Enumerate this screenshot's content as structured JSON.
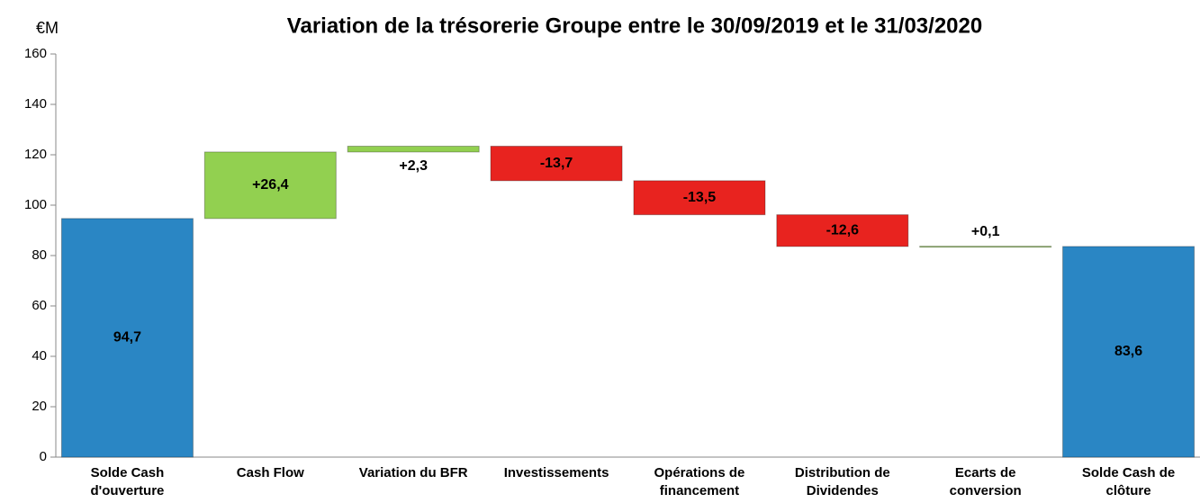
{
  "chart_data": {
    "type": "waterfall",
    "title": "Variation de  la trésorerie Groupe entre le 30/09/2019 et le 31/03/2020",
    "y_label": "€M",
    "categories": [
      [
        "Solde Cash",
        "d'ouverture"
      ],
      [
        "Cash Flow"
      ],
      [
        "Variation du BFR"
      ],
      [
        "Investissements"
      ],
      [
        "Opérations de",
        "financement"
      ],
      [
        "Distribution de",
        "Dividendes"
      ],
      [
        "Ecarts de",
        "conversion"
      ],
      [
        "Solde Cash de",
        "clôture"
      ]
    ],
    "values": [
      94.7,
      26.4,
      2.3,
      -13.7,
      -13.5,
      -12.6,
      0.1,
      83.6
    ],
    "value_labels": [
      "94,7",
      "+26,4",
      "+2,3",
      "-13,7",
      "-13,5",
      "-12,6",
      "+0,1",
      "83,6"
    ],
    "colors": [
      "#2a86c4",
      "#92d050",
      "#92d050",
      "#e8231f",
      "#e8231f",
      "#e8231f",
      "#92d050",
      "#2a86c4"
    ],
    "ylim": [
      0,
      160
    ],
    "yticks": [
      0,
      20,
      40,
      60,
      80,
      100,
      120,
      140,
      160
    ],
    "grid": false
  }
}
